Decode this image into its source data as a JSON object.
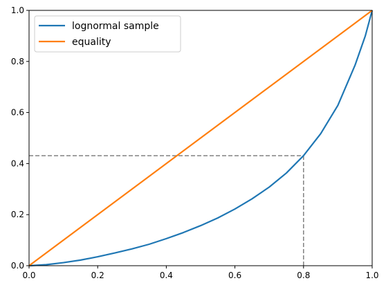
{
  "chart_data": {
    "type": "line",
    "title": "",
    "xlabel": "",
    "ylabel": "",
    "xlim": [
      0,
      1
    ],
    "ylim": [
      0,
      1
    ],
    "x_ticks": [
      "0.0",
      "0.2",
      "0.4",
      "0.6",
      "0.8",
      "1.0"
    ],
    "y_ticks": [
      "0.0",
      "0.2",
      "0.4",
      "0.6",
      "0.8",
      "1.0"
    ],
    "grid": false,
    "legend_position": "upper-left",
    "series": [
      {
        "name": "lognormal sample",
        "color": "#1f77b4",
        "x": [
          0.0,
          0.05,
          0.1,
          0.15,
          0.2,
          0.25,
          0.3,
          0.35,
          0.4,
          0.45,
          0.5,
          0.55,
          0.6,
          0.65,
          0.7,
          0.75,
          0.8,
          0.85,
          0.9,
          0.95,
          0.98,
          1.0
        ],
        "y": [
          0.0,
          0.004,
          0.012,
          0.022,
          0.035,
          0.05,
          0.066,
          0.084,
          0.106,
          0.13,
          0.157,
          0.187,
          0.222,
          0.262,
          0.308,
          0.363,
          0.431,
          0.517,
          0.628,
          0.785,
          0.9,
          1.0
        ]
      },
      {
        "name": "equality",
        "color": "#ff7f0e",
        "x": [
          0.0,
          1.0
        ],
        "y": [
          0.0,
          1.0
        ]
      }
    ],
    "reference_lines": [
      {
        "x": [
          0.0,
          0.8
        ],
        "y": [
          0.431,
          0.431
        ],
        "color": "#808080",
        "style": "dashed"
      },
      {
        "x": [
          0.8,
          0.8
        ],
        "y": [
          0.0,
          0.431
        ],
        "color": "#808080",
        "style": "dashed"
      }
    ]
  }
}
